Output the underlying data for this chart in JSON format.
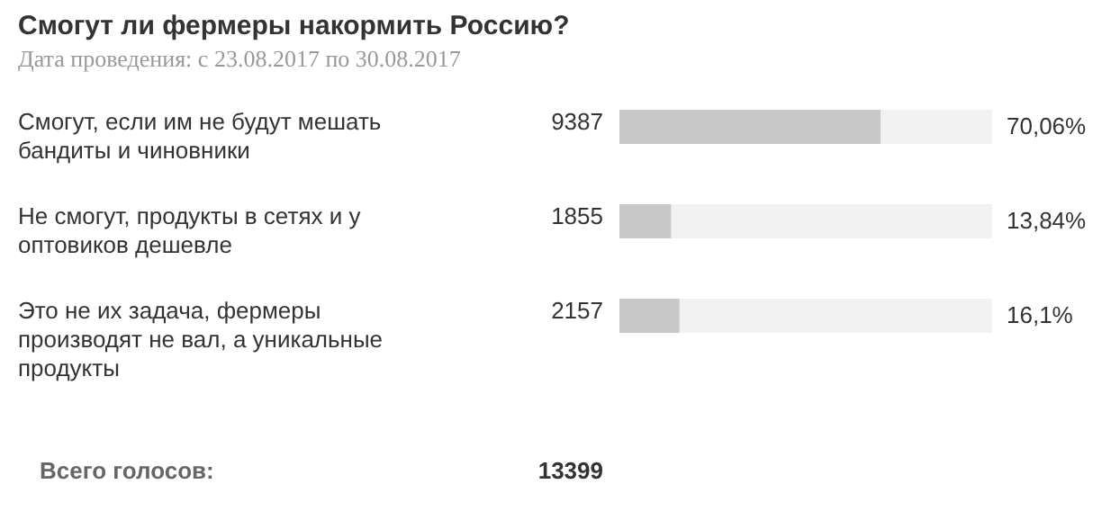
{
  "chart_data": {
    "type": "bar",
    "orientation": "horizontal",
    "title": "Смогут ли фермеры накормить Россию?",
    "subtitle": "Дата проведения: с 23.08.2017 по 30.08.2017",
    "categories": [
      "Смогут, если им не будут мешать бандиты и чиновники",
      "Не смогут, продукты в сетях и у оптовиков дешевле",
      "Это не их задача, фермеры производят не вал, а уникальные продукты"
    ],
    "values": [
      9387,
      1855,
      2157
    ],
    "data_labels": true,
    "color": "#c8c8c8",
    "xlim": [
      0,
      13399
    ],
    "tick_labels": false,
    "annotations": [
      "70,06%",
      "13,84%",
      "16,1%",
      "Всего голосов:",
      "13399"
    ]
  }
}
